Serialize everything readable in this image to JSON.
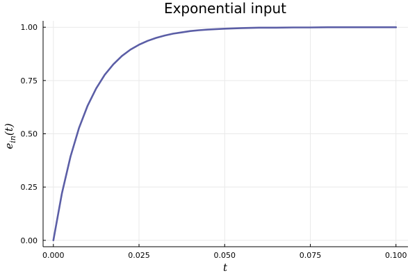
{
  "chart_data": {
    "type": "line",
    "title": "Exponential input",
    "xlabel": "t",
    "ylabel": {
      "base": "e",
      "sub": "in",
      "suffix": "(t)"
    },
    "xlim": [
      -0.003,
      0.1035
    ],
    "ylim": [
      -0.03,
      1.03
    ],
    "x_ticks": [
      0.0,
      0.025,
      0.05,
      0.075,
      0.1
    ],
    "x_tick_labels": [
      "0.000",
      "0.025",
      "0.050",
      "0.075",
      "0.100"
    ],
    "y_ticks": [
      0.0,
      0.25,
      0.5,
      0.75,
      1.0
    ],
    "y_tick_labels": [
      "0.00",
      "0.25",
      "0.50",
      "0.75",
      "1.00"
    ],
    "grid": true,
    "legend": "none",
    "series": [
      {
        "color": "#5b5ea6",
        "x": [
          0.0,
          0.0025,
          0.005,
          0.0075,
          0.01,
          0.0125,
          0.015,
          0.0175,
          0.02,
          0.0225,
          0.025,
          0.0275,
          0.03,
          0.0325,
          0.035,
          0.0375,
          0.04,
          0.0425,
          0.045,
          0.0475,
          0.05,
          0.055,
          0.06,
          0.065,
          0.07,
          0.075,
          0.08,
          0.085,
          0.09,
          0.095,
          0.1
        ],
        "y": [
          0.0,
          0.221,
          0.393,
          0.528,
          0.632,
          0.713,
          0.777,
          0.826,
          0.865,
          0.895,
          0.918,
          0.936,
          0.95,
          0.961,
          0.97,
          0.976,
          0.982,
          0.986,
          0.989,
          0.991,
          0.993,
          0.996,
          0.998,
          0.998,
          0.999,
          0.999,
          1.0,
          1.0,
          1.0,
          1.0,
          1.0
        ]
      }
    ]
  }
}
